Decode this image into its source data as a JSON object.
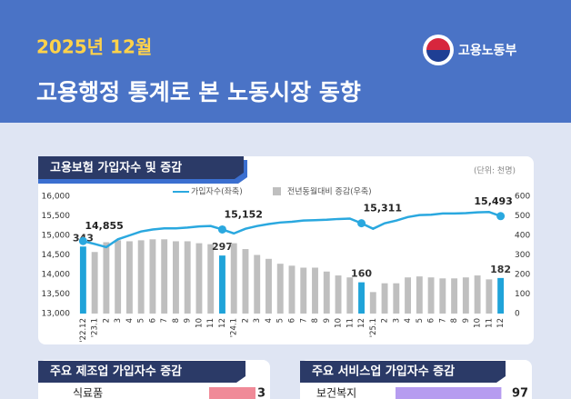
{
  "header": {
    "date": "2025년 12월",
    "title": "고용행정 통계로 본 노동시장 동향",
    "ministry": "고용노동부"
  },
  "chart_data": [
    {
      "type": "bar_line",
      "title": "고용보험 가입자수 및 증감",
      "unit_note": "(단위: 천명)",
      "categories": [
        "'22.12",
        "'23.1",
        "2",
        "3",
        "4",
        "5",
        "6",
        "7",
        "8",
        "9",
        "10",
        "11",
        "12",
        "'24.1",
        "2",
        "3",
        "4",
        "5",
        "6",
        "7",
        "8",
        "9",
        "10",
        "11",
        "12",
        "'25.1",
        "2",
        "3",
        "4",
        "5",
        "6",
        "7",
        "8",
        "9",
        "10",
        "11",
        "12"
      ],
      "series": [
        {
          "name": "가입자수(좌축)",
          "kind": "line",
          "axis": "y",
          "color": "#2aa8df",
          "values": [
            14855,
            14780,
            14700,
            14900,
            15000,
            15100,
            15150,
            15180,
            15180,
            15200,
            15230,
            15240,
            15152,
            15050,
            15170,
            15240,
            15290,
            15330,
            15350,
            15380,
            15390,
            15400,
            15420,
            15430,
            15311,
            15170,
            15310,
            15380,
            15470,
            15520,
            15530,
            15560,
            15560,
            15570,
            15590,
            15600,
            15493
          ],
          "value_labels": [
            "14,855",
            null,
            null,
            null,
            null,
            null,
            null,
            null,
            null,
            null,
            null,
            null,
            "15,152",
            null,
            null,
            null,
            null,
            null,
            null,
            null,
            null,
            null,
            null,
            null,
            "15,311",
            null,
            null,
            null,
            null,
            null,
            null,
            null,
            null,
            null,
            null,
            null,
            "15,493"
          ]
        },
        {
          "name": "전년동월대비 증감(우축)",
          "kind": "bar",
          "axis": "y2",
          "color": "#bfbfbf",
          "highlight_color": "#1fa3d9",
          "values": [
            343,
            315,
            365,
            375,
            370,
            375,
            380,
            380,
            370,
            370,
            360,
            355,
            297,
            360,
            330,
            300,
            280,
            255,
            245,
            235,
            235,
            215,
            195,
            185,
            160,
            110,
            155,
            155,
            185,
            190,
            185,
            180,
            180,
            185,
            195,
            175,
            182
          ],
          "value_labels": [
            "343",
            null,
            null,
            null,
            null,
            null,
            null,
            null,
            null,
            null,
            null,
            null,
            "297",
            null,
            null,
            null,
            null,
            null,
            null,
            null,
            null,
            null,
            null,
            null,
            "160",
            null,
            null,
            null,
            null,
            null,
            null,
            null,
            null,
            null,
            null,
            null,
            "182"
          ]
        }
      ],
      "ylim": [
        13000,
        16000
      ],
      "yticks": [
        {
          "value": 13000,
          "label": "13,000"
        },
        {
          "value": 13500,
          "label": "13,500"
        },
        {
          "value": 14000,
          "label": "14,000"
        },
        {
          "value": 14500,
          "label": "14,500"
        },
        {
          "value": 15000,
          "label": "15,000"
        },
        {
          "value": 15500,
          "label": "15,500"
        },
        {
          "value": 16000,
          "label": "16,000"
        }
      ],
      "y2lim": [
        0,
        600
      ],
      "y2ticks": [
        0,
        100,
        200,
        300,
        400,
        500,
        600
      ]
    },
    {
      "type": "hbar",
      "title": "주요 제조업 가입자수 증감",
      "categories": [
        "식료품"
      ],
      "values": [
        3
      ],
      "color": "#f08a98"
    },
    {
      "type": "hbar",
      "title": "주요 서비스업 가입자수 증감",
      "categories": [
        "보건복지"
      ],
      "values": [
        97
      ],
      "color": "#b69cf0"
    }
  ]
}
